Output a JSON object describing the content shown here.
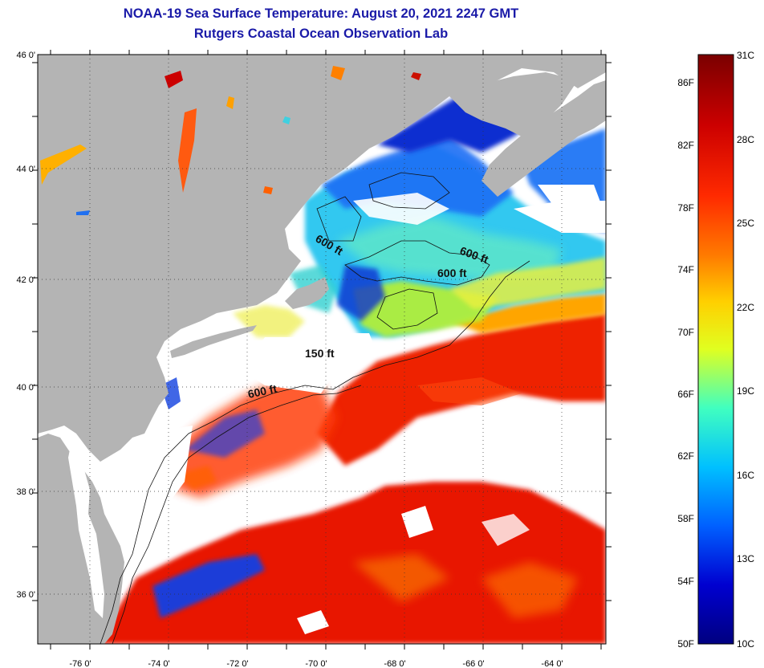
{
  "header": {
    "title": "NOAA-19 Sea Surface Temperature:  August 20, 2021 2247 GMT",
    "subtitle": "Rutgers Coastal Ocean Observation Lab"
  },
  "map": {
    "lat_labels": [
      "46 0'",
      "44 0'",
      "42 0'",
      "40 0'",
      "38 0'",
      "36 0'"
    ],
    "lon_labels": [
      "-76 0'",
      "-74 0'",
      "-72 0'",
      "-70 0'",
      "-68 0'",
      "-66 0'",
      "-64 0'"
    ],
    "contour_labels": [
      "600 ft",
      "600 ft",
      "600 ft",
      "150 ft",
      "600 ft"
    ],
    "colors": {
      "land": "#b4b4b4",
      "cloud": "#ffffff",
      "frame": "#000000"
    }
  },
  "colorbar": {
    "fahrenheit_labels": [
      "86F",
      "82F",
      "78F",
      "74F",
      "70F",
      "66F",
      "62F",
      "58F",
      "54F",
      "50F"
    ],
    "celsius_labels": [
      "31C",
      "28C",
      "25C",
      "22C",
      "19C",
      "16C",
      "13C",
      "10C"
    ],
    "colors": [
      "#7a0000",
      "#cc0000",
      "#ff2a00",
      "#ff7a00",
      "#ffd000",
      "#e0ff20",
      "#40ffc0",
      "#00c0ff",
      "#0060ff",
      "#0000d0",
      "#000080"
    ]
  }
}
